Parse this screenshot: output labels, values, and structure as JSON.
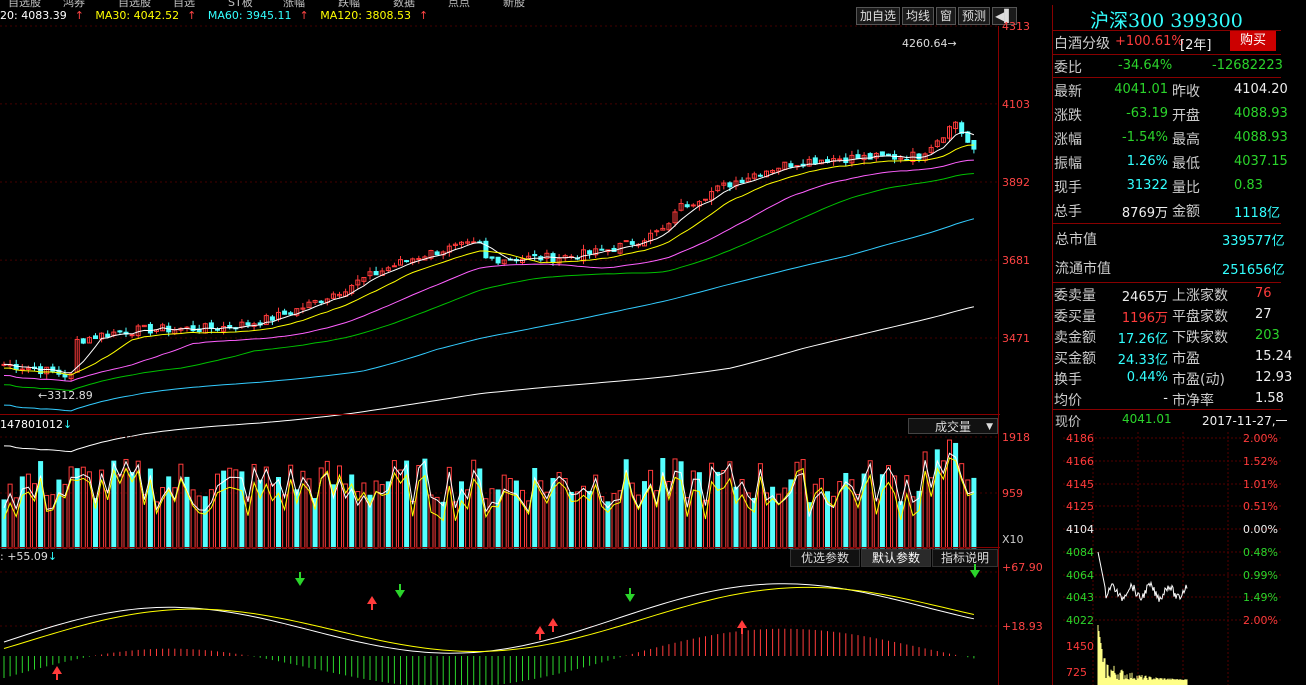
{
  "topbar": {
    "items": [
      "自选股",
      "鸿券",
      "自选股",
      "自选",
      "ST板",
      "涨幅",
      "跌幅",
      "数据",
      "点点",
      "新股"
    ]
  },
  "ma_legend": [
    {
      "label": "20: 4083.39",
      "color": "#ffffff"
    },
    {
      "label": "MA30: 4042.52",
      "color": "#ffff00"
    },
    {
      "label": "MA60: 3945.11",
      "color": "#00ffff"
    },
    {
      "label": "MA120: 3808.53",
      "color": "#ffff00"
    }
  ],
  "toolbar": {
    "items": [
      "加自选",
      "均线",
      "窗",
      "预测"
    ]
  },
  "main_axis": {
    "labels": [
      "4313",
      "4103",
      "3892",
      "3681",
      "3471"
    ]
  },
  "annotations": {
    "high": "4260.64",
    "low": "3312.89"
  },
  "volume": {
    "header": "147801012",
    "dropdown": "成交量",
    "axis": [
      "1918",
      "959",
      "X10"
    ]
  },
  "indicator": {
    "header": ": +55.09",
    "tabs": [
      "优选参数",
      "默认参数",
      "指标说明"
    ],
    "axis": [
      "+67.90",
      "+18.93"
    ]
  },
  "panel": {
    "title": "沪深300 399300",
    "sector": "白酒分级",
    "sector_change": "+100.61%",
    "sector_tag": "[2年]",
    "buy_label": "购买",
    "weibi_label": "委比",
    "weibi_value": "-34.64%",
    "weibi_diff": "-12682223",
    "rows": [
      {
        "l1": "最新",
        "v1": "4041.01",
        "c1": "green",
        "l2": "昨收",
        "v2": "4104.20",
        "c2": "white"
      },
      {
        "l1": "涨跌",
        "v1": "-63.19",
        "c1": "green",
        "l2": "开盘",
        "v2": "4088.93",
        "c2": "green"
      },
      {
        "l1": "涨幅",
        "v1": "-1.54%",
        "c1": "green",
        "l2": "最高",
        "v2": "4088.93",
        "c2": "green"
      },
      {
        "l1": "振幅",
        "v1": "1.26%",
        "c1": "cyan",
        "l2": "最低",
        "v2": "4037.15",
        "c2": "green"
      },
      {
        "l1": "现手",
        "v1": "31322",
        "c1": "cyan",
        "l2": "量比",
        "v2": "0.83",
        "c2": "green"
      },
      {
        "l1": "总手",
        "v1": "8769万",
        "c1": "white",
        "l2": "金额",
        "v2": "1118亿",
        "c2": "cyan"
      }
    ],
    "cap_rows": [
      {
        "label": "总市值",
        "value": "339577亿"
      },
      {
        "label": "流通市值",
        "value": "251656亿"
      }
    ],
    "stats": [
      {
        "l1": "委卖量",
        "v1": "2465万",
        "c1": "white",
        "l2": "上涨家数",
        "v2": "76",
        "c2": "red"
      },
      {
        "l1": "委买量",
        "v1": "1196万",
        "c1": "red",
        "l2": "平盘家数",
        "v2": "27",
        "c2": "white"
      },
      {
        "l1": "卖金额",
        "v1": "17.26亿",
        "c1": "cyan",
        "l2": "下跌家数",
        "v2": "203",
        "c2": "green"
      },
      {
        "l1": "买金额",
        "v1": "24.33亿",
        "c1": "cyan",
        "l2": "市盈",
        "v2": "15.24",
        "c2": "white"
      },
      {
        "l1": "换手",
        "v1": "0.44%",
        "c1": "cyan",
        "l2": "市盈(动)",
        "v2": "12.93",
        "c2": "white"
      },
      {
        "l1": "均价",
        "v1": "-",
        "c1": "white",
        "l2": "市净率",
        "v2": "1.58",
        "c2": "white"
      }
    ],
    "now_label": "现价",
    "now_value": "4041.01",
    "now_date": "2017-11-27,一",
    "mini_left": [
      "4186",
      "4166",
      "4145",
      "4125",
      "4104",
      "4084",
      "4064",
      "4043",
      "4022",
      "1450",
      "725"
    ],
    "mini_right": [
      "2.00%",
      "1.52%",
      "1.01%",
      "0.51%",
      "0.00%",
      "0.48%",
      "0.99%",
      "1.49%",
      "2.00%"
    ]
  },
  "colors": {
    "up": "#ff3b3b",
    "down": "#54ffff",
    "ma5": "#ffffff",
    "ma10": "#ffff00",
    "ma20": "#ff60ff",
    "ma30": "#00c000",
    "ma60": "#33ccff",
    "ma120": "#ffffff"
  }
}
